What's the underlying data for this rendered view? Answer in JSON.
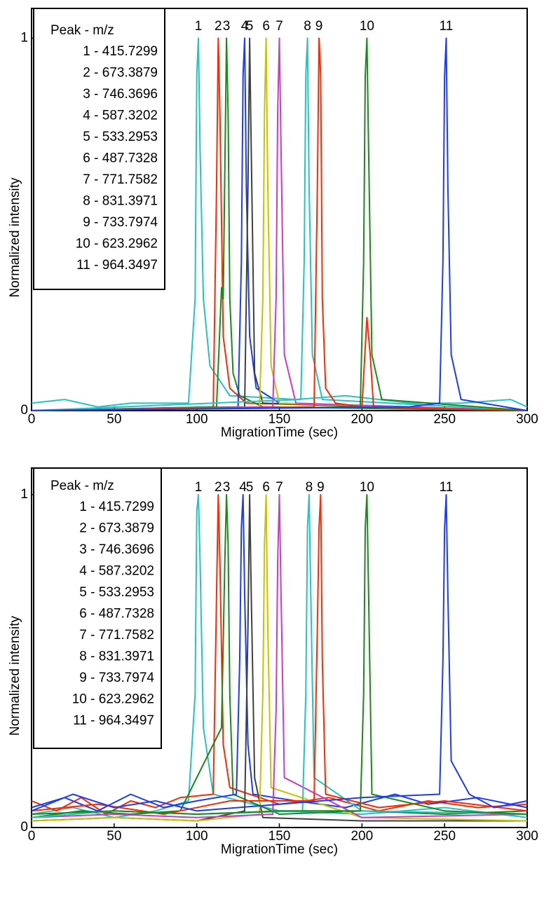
{
  "chart_data": [
    {
      "type": "line",
      "xlabel": "MigrationTime (sec)",
      "ylabel": "Normalized intensity",
      "legend_title": "Peak - m/z",
      "xlim": [
        0,
        300
      ],
      "ylim": [
        0,
        1.08
      ],
      "xticks": [
        0,
        50,
        100,
        150,
        200,
        250,
        300
      ],
      "yticks": [
        0,
        1
      ],
      "series": [
        {
          "name": "1 - 415.7299",
          "label": "1",
          "color": "#22c4c4",
          "x": [
            0,
            20,
            40,
            60,
            80,
            95,
            99,
            100,
            101,
            102,
            104,
            108,
            120,
            160,
            190,
            230,
            260,
            290,
            300
          ],
          "values": [
            0.02,
            0.03,
            0.01,
            0.02,
            0.02,
            0.02,
            0.3,
            0.9,
            1,
            0.7,
            0.3,
            0.12,
            0.04,
            0.03,
            0.04,
            0.02,
            0.02,
            0.03,
            0.01
          ]
        },
        {
          "name": "2 - 673.3879",
          "label": "2",
          "color": "#ff2a00",
          "x": [
            0,
            110,
            112,
            113,
            114,
            116,
            120,
            130,
            300
          ],
          "values": [
            0,
            0.01,
            0.6,
            1,
            0.8,
            0.2,
            0.06,
            0.02,
            0
          ]
        },
        {
          "name": "3 - 746.3696",
          "label": "3",
          "color": "#1a8a1a",
          "x": [
            0,
            112,
            115,
            116,
            118,
            119,
            120,
            122,
            126,
            140,
            300
          ],
          "values": [
            0,
            0.01,
            0.33,
            0.3,
            1,
            0.8,
            0.3,
            0.1,
            0.04,
            0.01,
            0
          ]
        },
        {
          "name": "4 - 587.3202",
          "label": "4",
          "color": "#1a3cff",
          "x": [
            0,
            125,
            127,
            128,
            129,
            130,
            132,
            136,
            150,
            300
          ],
          "values": [
            0,
            0.01,
            0.4,
            0.9,
            1,
            0.6,
            0.2,
            0.06,
            0.02,
            0
          ]
        },
        {
          "name": "5 - 533.2953",
          "label": "5",
          "color": "#404040",
          "x": [
            0,
            129,
            131,
            132,
            133,
            135,
            140,
            300
          ],
          "values": [
            0,
            0.01,
            0.6,
            1,
            0.7,
            0.1,
            0.02,
            0
          ]
        },
        {
          "name": "6 - 487.7328",
          "label": "6",
          "color": "#c4c400",
          "x": [
            0,
            138,
            140,
            141,
            142,
            143,
            145,
            150,
            300
          ],
          "values": [
            0,
            0.01,
            0.3,
            0.8,
            1,
            0.6,
            0.12,
            0.02,
            0
          ]
        },
        {
          "name": "7 - 771.7582",
          "label": "7",
          "color": "#c83cc8",
          "x": [
            0,
            146,
            148,
            149,
            150,
            151,
            153,
            160,
            300
          ],
          "values": [
            0,
            0.01,
            0.3,
            0.8,
            1,
            0.7,
            0.15,
            0.02,
            0
          ]
        },
        {
          "name": "8 - 831.3971",
          "label": "8",
          "color": "#22c4c4",
          "x": [
            0,
            163,
            165,
            166,
            167,
            168,
            170,
            176,
            300
          ],
          "values": [
            0,
            0.03,
            0.4,
            0.9,
            1,
            0.6,
            0.15,
            0.03,
            0
          ]
        },
        {
          "name": "9 - 733.7974",
          "label": "9",
          "color": "#ff2a00",
          "x": [
            0,
            171,
            173,
            174,
            175,
            176,
            178,
            184,
            200,
            203,
            205,
            207,
            300
          ],
          "values": [
            0,
            0.01,
            0.6,
            1,
            0.9,
            0.3,
            0.06,
            0.02,
            0.01,
            0.25,
            0.15,
            0.01,
            0
          ]
        },
        {
          "name": "10 - 623.2962",
          "label": "10",
          "color": "#1a8a1a",
          "x": [
            0,
            199,
            201,
            202,
            203,
            204,
            206,
            212,
            300
          ],
          "values": [
            0,
            0.01,
            0.4,
            0.9,
            1,
            0.7,
            0.15,
            0.03,
            0
          ]
        },
        {
          "name": "11 - 964.3497",
          "label": "11",
          "color": "#1a3cff",
          "x": [
            0,
            228,
            247,
            249,
            250,
            251,
            252,
            254,
            260,
            300
          ],
          "values": [
            0,
            0.01,
            0.02,
            0.4,
            0.9,
            1,
            0.6,
            0.15,
            0.03,
            0
          ]
        }
      ]
    },
    {
      "type": "line",
      "xlabel": "MigrationTime (sec)",
      "ylabel": "Normalized intensity",
      "legend_title": "Peak - m/z",
      "xlim": [
        0,
        300
      ],
      "ylim": [
        0,
        1.08
      ],
      "xticks": [
        0,
        50,
        100,
        150,
        200,
        250,
        300
      ],
      "yticks": [
        0,
        1
      ],
      "series": [
        {
          "name": "1 - 415.7299",
          "label": "1",
          "color": "#22c4c4",
          "x": [
            0,
            25,
            50,
            75,
            95,
            99,
            100,
            101,
            102,
            104,
            110,
            150,
            200,
            250,
            300
          ],
          "values": [
            0.04,
            0.06,
            0.03,
            0.05,
            0.08,
            0.4,
            0.95,
            1,
            0.8,
            0.3,
            0.1,
            0.05,
            0.04,
            0.06,
            0.03
          ]
        },
        {
          "name": "2 - 673.3879",
          "label": "2",
          "color": "#ff2a00",
          "x": [
            0,
            15,
            30,
            45,
            60,
            75,
            90,
            110,
            112,
            113,
            114,
            116,
            120,
            150,
            180,
            210,
            240,
            270,
            300
          ],
          "values": [
            0.08,
            0.05,
            0.09,
            0.04,
            0.08,
            0.06,
            0.09,
            0.1,
            0.7,
            1,
            0.8,
            0.25,
            0.12,
            0.07,
            0.09,
            0.05,
            0.08,
            0.06,
            0.07
          ]
        },
        {
          "name": "3 - 746.3696",
          "label": "3",
          "color": "#1a8a1a",
          "x": [
            0,
            30,
            60,
            90,
            115,
            117,
            118,
            119,
            120,
            122,
            150,
            200,
            250,
            300
          ],
          "values": [
            0.03,
            0.05,
            0.04,
            0.05,
            0.3,
            0.8,
            1,
            0.85,
            0.4,
            0.1,
            0.04,
            0.05,
            0.04,
            0.05
          ]
        },
        {
          "name": "4 - 587.3202",
          "label": "4",
          "color": "#1a3cff",
          "x": [
            0,
            20,
            40,
            60,
            80,
            100,
            124,
            126,
            127,
            128,
            129,
            131,
            134,
            160,
            190,
            220,
            240,
            270,
            300
          ],
          "values": [
            0.06,
            0.09,
            0.05,
            0.1,
            0.06,
            0.08,
            0.1,
            0.5,
            0.9,
            1,
            0.7,
            0.25,
            0.1,
            0.08,
            0.06,
            0.1,
            0.07,
            0.09,
            0.06
          ]
        },
        {
          "name": "5 - 533.2953",
          "label": "5",
          "color": "#404040",
          "x": [
            0,
            50,
            100,
            129,
            131,
            132,
            133,
            135,
            140,
            200,
            300
          ],
          "values": [
            0.02,
            0.03,
            0.02,
            0.05,
            0.6,
            1,
            0.7,
            0.15,
            0.03,
            0.02,
            0.02
          ]
        },
        {
          "name": "6 - 487.7328",
          "label": "6",
          "color": "#c4c400",
          "x": [
            0,
            50,
            100,
            138,
            140,
            141,
            142,
            143,
            145,
            200,
            300
          ],
          "values": [
            0.02,
            0.03,
            0.02,
            0.04,
            0.4,
            0.85,
            1,
            0.6,
            0.12,
            0.03,
            0.02
          ]
        },
        {
          "name": "7 - 771.7582",
          "label": "7",
          "color": "#c83cc8",
          "x": [
            0,
            50,
            100,
            146,
            148,
            149,
            150,
            151,
            153,
            200,
            300
          ],
          "values": [
            0.03,
            0.04,
            0.03,
            0.04,
            0.35,
            0.8,
            1,
            0.7,
            0.15,
            0.03,
            0.04
          ]
        },
        {
          "name": "8 - 831.3971",
          "label": "8",
          "color": "#22c4c4",
          "x": [
            0,
            50,
            100,
            164,
            166,
            167,
            168,
            169,
            171,
            200,
            300
          ],
          "values": [
            0.03,
            0.05,
            0.04,
            0.05,
            0.4,
            0.9,
            1,
            0.7,
            0.15,
            0.05,
            0.04
          ]
        },
        {
          "name": "9 - 733.7974",
          "label": "9",
          "color": "#ff2a00",
          "x": [
            0,
            40,
            80,
            120,
            171,
            173,
            174,
            175,
            176,
            178,
            210,
            250,
            300
          ],
          "values": [
            0.05,
            0.07,
            0.04,
            0.08,
            0.08,
            0.6,
            0.9,
            1,
            0.5,
            0.1,
            0.06,
            0.08,
            0.05
          ]
        },
        {
          "name": "10 - 623.2962",
          "label": "10",
          "color": "#1a8a1a",
          "x": [
            0,
            50,
            100,
            150,
            199,
            201,
            202,
            203,
            204,
            206,
            250,
            300
          ],
          "values": [
            0.04,
            0.05,
            0.04,
            0.05,
            0.05,
            0.4,
            0.9,
            1,
            0.7,
            0.1,
            0.05,
            0.04
          ]
        },
        {
          "name": "11 - 964.3497",
          "label": "11",
          "color": "#1a3cff",
          "x": [
            0,
            25,
            50,
            75,
            100,
            150,
            200,
            247,
            249,
            250,
            251,
            252,
            254,
            265,
            280,
            300
          ],
          "values": [
            0.05,
            0.1,
            0.06,
            0.08,
            0.05,
            0.07,
            0.09,
            0.1,
            0.5,
            0.9,
            1,
            0.7,
            0.2,
            0.1,
            0.06,
            0.08
          ]
        }
      ]
    }
  ]
}
